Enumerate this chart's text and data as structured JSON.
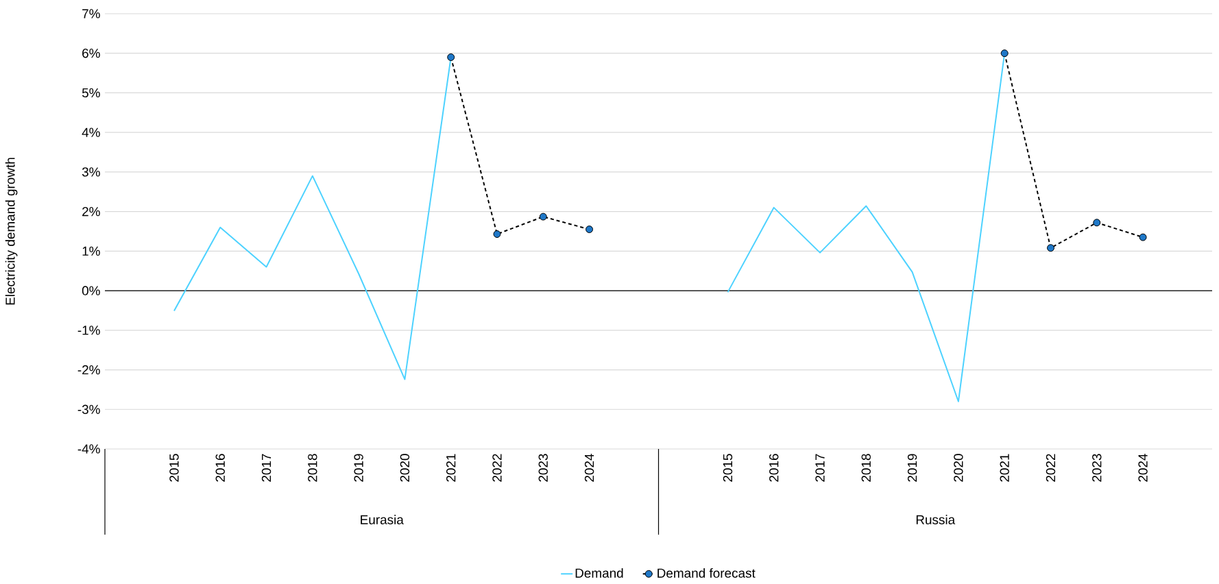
{
  "chart_data": {
    "type": "line",
    "ylabel": "Electricity demand growth",
    "categories": [
      null,
      "2015",
      "2016",
      "2017",
      "2018",
      "2019",
      "2020",
      "2021",
      "2022",
      "2023",
      "2024",
      null,
      null,
      "2015",
      "2016",
      "2017",
      "2018",
      "2019",
      "2020",
      "2021",
      "2022",
      "2023",
      "2024",
      null
    ],
    "series": [
      {
        "name": "Demand",
        "color": "#4dd2ff",
        "line_style": "solid",
        "marker": "none",
        "values": [
          null,
          -0.51,
          1.6,
          0.6,
          2.9,
          0.43,
          -2.24,
          5.9,
          null,
          null,
          null,
          null,
          null,
          -0.04,
          2.1,
          0.96,
          2.14,
          0.47,
          -2.8,
          6.0,
          null,
          null,
          null,
          null
        ]
      },
      {
        "name": "Demand forecast",
        "color": "#1f78c8",
        "line_style": "dashed",
        "marker": "circle",
        "values": [
          null,
          null,
          null,
          null,
          null,
          null,
          null,
          5.9,
          1.43,
          1.87,
          1.55,
          null,
          null,
          null,
          null,
          null,
          null,
          null,
          null,
          6.0,
          1.08,
          1.72,
          1.35,
          null
        ]
      }
    ],
    "ylim": [
      -4,
      7
    ],
    "yticks": [
      {
        "value": -4,
        "label": "-4%"
      },
      {
        "value": -3,
        "label": "-3%"
      },
      {
        "value": -2,
        "label": "-2%"
      },
      {
        "value": -1,
        "label": "-1%"
      },
      {
        "value": 0,
        "label": "0%"
      },
      {
        "value": 1,
        "label": "1%"
      },
      {
        "value": 2,
        "label": "2%"
      },
      {
        "value": 3,
        "label": "3%"
      },
      {
        "value": 4,
        "label": "4%"
      },
      {
        "value": 5,
        "label": "5%"
      },
      {
        "value": 6,
        "label": "6%"
      },
      {
        "value": 7,
        "label": "7%"
      }
    ],
    "ref_lines": [
      {
        "axis": "y",
        "value": 0,
        "color": "#000000"
      }
    ],
    "annotations": [
      "Eurasia",
      "Russia"
    ],
    "grid": "y",
    "legend": "bottom"
  }
}
